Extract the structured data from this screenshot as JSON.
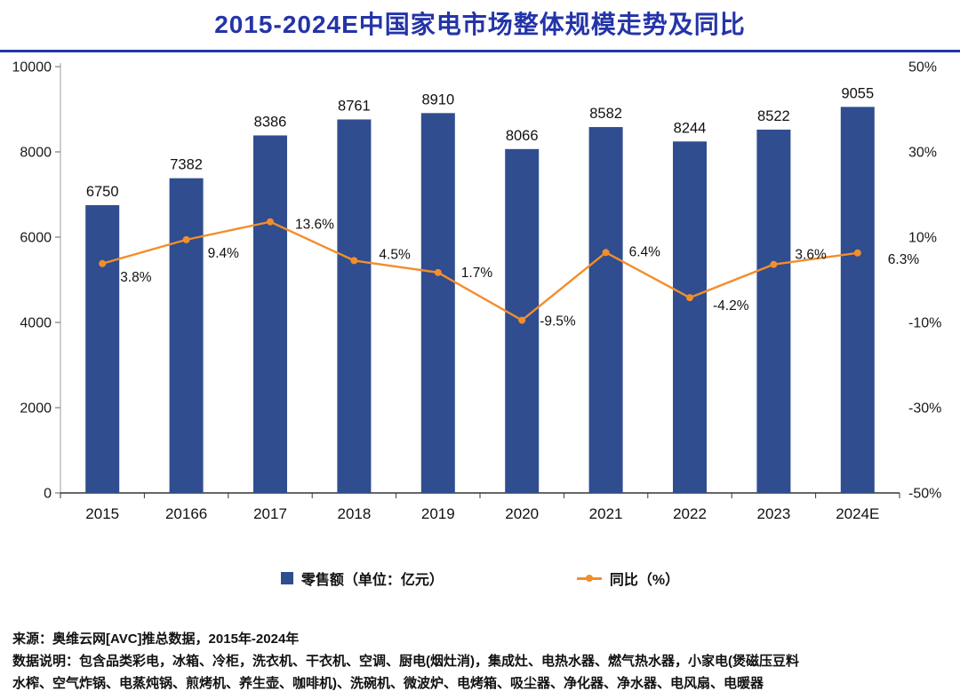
{
  "page": {
    "title": "2015-2024E中国家电市场整体规模走势及同比"
  },
  "chart_data": {
    "type": "combo",
    "title": "2015-2024E中国家电市场整体规模走势及同比",
    "categories": [
      "2015",
      "20166",
      "2017",
      "2018",
      "2019",
      "2020",
      "2021",
      "2022",
      "2023",
      "2024E"
    ],
    "series": [
      {
        "name": "零售额（单位：亿元）",
        "type": "bar",
        "axis": "left",
        "color": "#2F4D8F",
        "values": [
          6750,
          7382,
          8386,
          8761,
          8910,
          8066,
          8582,
          8244,
          8522,
          9055
        ],
        "data_labels": [
          "6750",
          "7382",
          "8386",
          "8761",
          "8910",
          "8066",
          "8582",
          "8244",
          "8522",
          "9055"
        ]
      },
      {
        "name": "同比（%）",
        "type": "line",
        "axis": "right",
        "color": "#F28E2C",
        "values": [
          3.8,
          9.4,
          13.6,
          4.5,
          1.7,
          -9.5,
          6.4,
          -4.2,
          3.6,
          6.3
        ],
        "data_labels": [
          "3.8%",
          "9.4%",
          "13.6%",
          "4.5%",
          "1.7%",
          "-9.5%",
          "6.4%",
          "-4.2%",
          "3.6%",
          "6.3%"
        ]
      }
    ],
    "left_axis": {
      "min": 0,
      "max": 10000,
      "ticks": [
        0,
        2000,
        4000,
        6000,
        8000,
        10000
      ],
      "tick_labels": [
        "0",
        "2000",
        "4000",
        "6000",
        "8000",
        "10000"
      ]
    },
    "right_axis": {
      "min": -50,
      "max": 50,
      "ticks": [
        50,
        30,
        10,
        -10,
        -30,
        -50
      ],
      "tick_labels": [
        "50%",
        "30%",
        "10%",
        "-10%",
        "-30%",
        "-50%"
      ]
    },
    "grid": false,
    "legend_position": "bottom"
  },
  "footer": {
    "lines": [
      "来源：奥维云网[AVC]推总数据，2015年-2024年",
      "数据说明：包含品类彩电，冰箱、冷柜，洗衣机、干衣机、空调、厨电(烟灶消)，集成灶、电热水器、燃气热水器，小家电(煲磁压豆料",
      "水榨、空气炸锅、电蒸炖锅、煎烤机、养生壶、咖啡机)、洗碗机、微波炉、电烤箱、吸尘器、净化器、净水器、电风扇、电暖器"
    ]
  },
  "colors": {
    "title_accent": "#2434A8",
    "bar": "#2F4D8F",
    "line": "#F28E2C"
  }
}
